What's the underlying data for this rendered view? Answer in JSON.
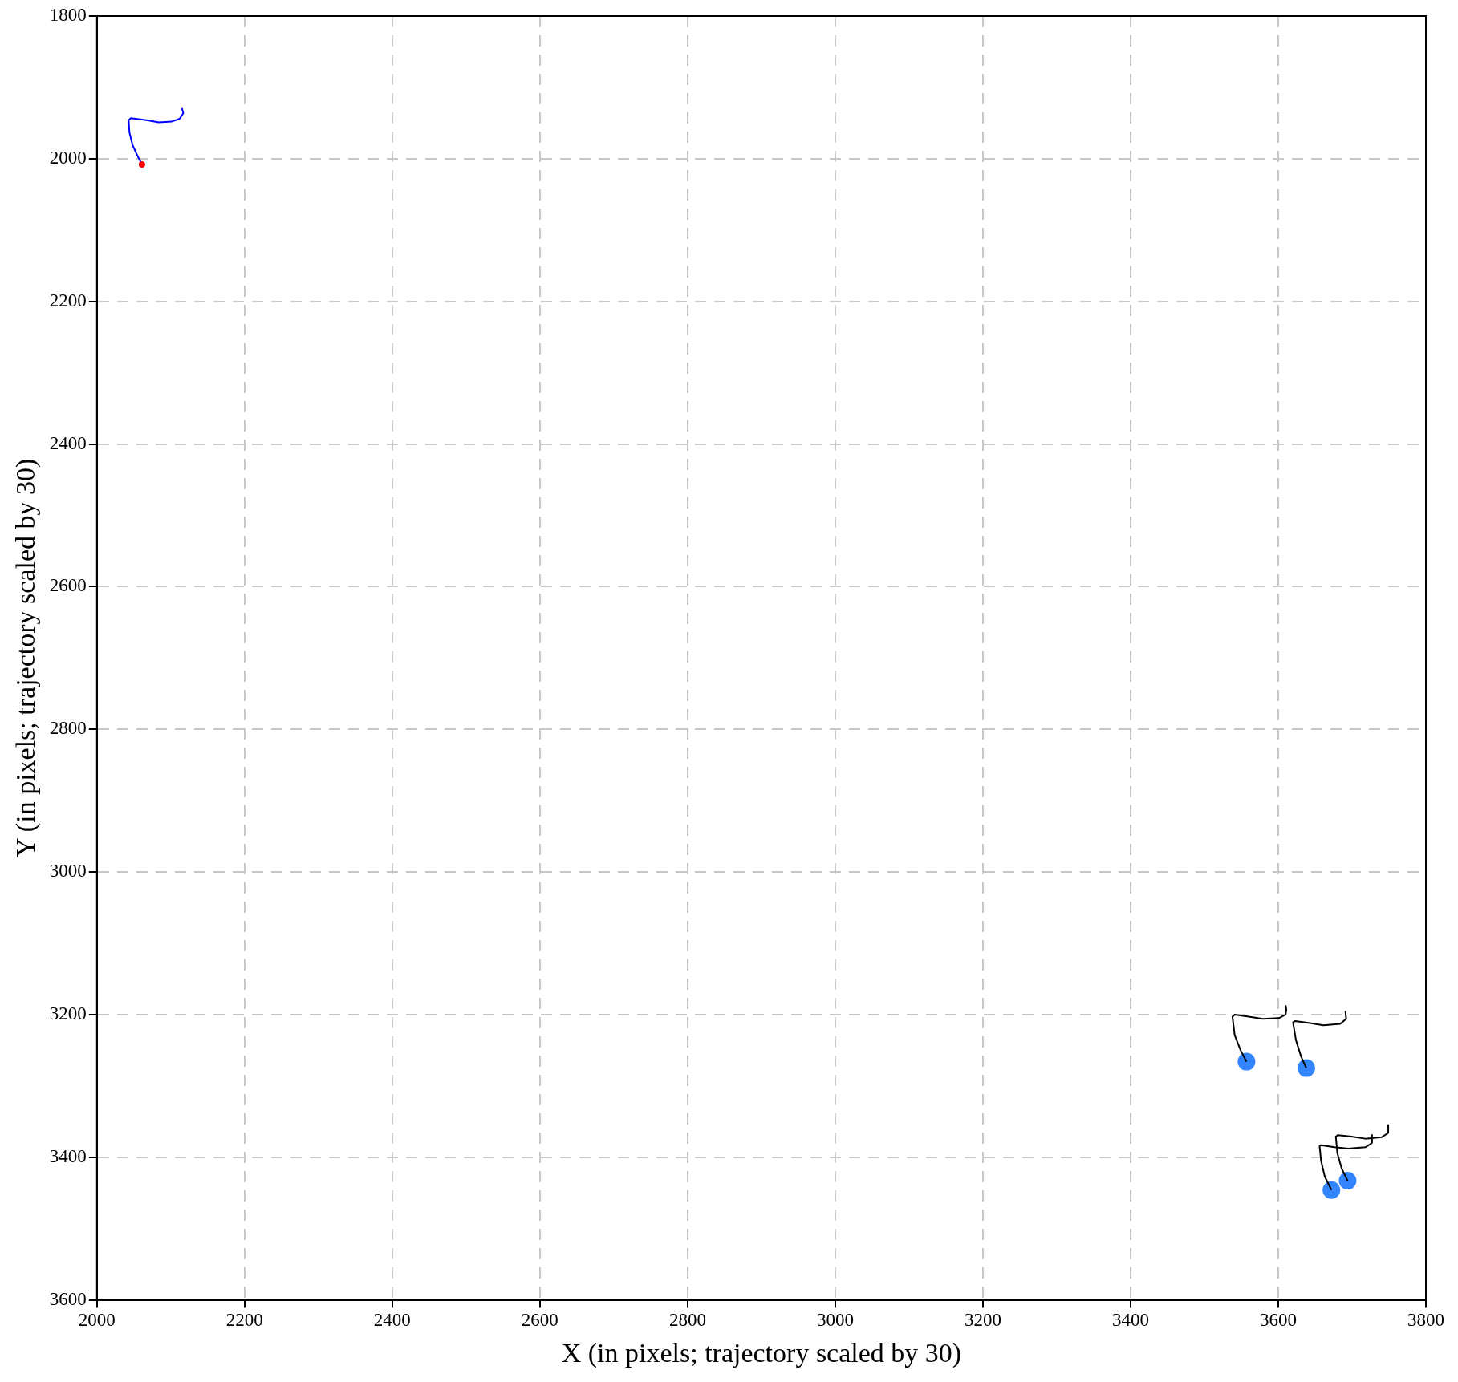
{
  "chart_data": {
    "type": "line",
    "xlabel": "X (in pixels; trajectory scaled by 30)",
    "ylabel": "Y (in pixels; trajectory scaled by 30)",
    "xlim": [
      2000,
      3800
    ],
    "ylim": [
      3600,
      1800
    ],
    "xticks": [
      2000,
      2200,
      2400,
      2600,
      2800,
      3000,
      3200,
      3400,
      3600,
      3800
    ],
    "yticks": [
      1800,
      2000,
      2200,
      2400,
      2600,
      2800,
      3000,
      3200,
      3400,
      3600
    ],
    "grid": true,
    "legend": false,
    "series": [
      {
        "marker": "none",
        "color": "#0000ff",
        "x": [
          2061,
          2054,
          2048,
          2044,
          2043,
          2046,
          2067,
          2084,
          2101,
          2112,
          2117,
          2115
        ],
        "values": [
          2008,
          1994,
          1980,
          1963,
          1946,
          1943,
          1946,
          1949,
          1948,
          1944,
          1936,
          1929
        ]
      },
      {
        "type": "scatter",
        "marker": "circle",
        "color": "#ff0000",
        "x": [
          2061
        ],
        "values": [
          2008
        ]
      },
      {
        "type": "scatter",
        "marker": "circle",
        "color": "#3385ff",
        "x": [
          3557,
          3638,
          3672,
          3694
        ],
        "values": [
          3266,
          3275,
          3446,
          3433
        ]
      },
      {
        "marker": "none",
        "color": "#000000",
        "x": [
          3557,
          3549,
          3541,
          3538,
          3541,
          3560,
          3579,
          3601,
          3610,
          3611,
          3610
        ],
        "values": [
          3266,
          3250,
          3229,
          3203,
          3200,
          3203,
          3206,
          3205,
          3200,
          3193,
          3187
        ]
      },
      {
        "marker": "none",
        "color": "#000000",
        "x": [
          3638,
          3631,
          3624,
          3620,
          3623,
          3643,
          3661,
          3684,
          3692,
          3691
        ],
        "values": [
          3275,
          3259,
          3236,
          3211,
          3209,
          3212,
          3215,
          3213,
          3206,
          3195
        ]
      },
      {
        "marker": "none",
        "color": "#000000",
        "x": [
          3672,
          3663,
          3658,
          3656,
          3658,
          3676,
          3695,
          3718,
          3727,
          3727
        ],
        "values": [
          3446,
          3427,
          3405,
          3384,
          3383,
          3386,
          3388,
          3386,
          3380,
          3368
        ]
      },
      {
        "marker": "none",
        "color": "#000000",
        "x": [
          3694,
          3686,
          3680,
          3678,
          3681,
          3699,
          3718,
          3740,
          3749,
          3749
        ],
        "values": [
          3433,
          3416,
          3394,
          3371,
          3369,
          3371,
          3374,
          3372,
          3366,
          3354
        ]
      }
    ]
  }
}
